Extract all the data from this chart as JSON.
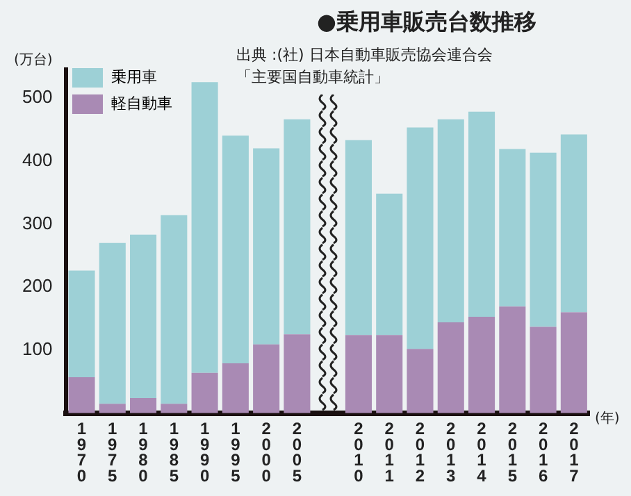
{
  "chart_data": {
    "type": "bar",
    "title": "●乗用車販売台数推移",
    "annotations": [
      "出典 :(社) 日本自動車販売協会連合会",
      "「主要国自動車統計」"
    ],
    "ylabel": "(万台)",
    "xlabel": "(年)",
    "categories": [
      "1970",
      "1975",
      "1980",
      "1985",
      "1990",
      "1995",
      "2000",
      "2005",
      null,
      "2010",
      "2011",
      "2012",
      "2013",
      "2014",
      "2015",
      "2016",
      "2017"
    ],
    "stacked": true,
    "series": [
      {
        "name": "軽自動車",
        "color": "#a98ab4",
        "values": [
          57,
          15,
          24,
          15,
          64,
          79,
          109,
          125,
          null,
          124,
          124,
          102,
          144,
          153,
          169,
          137,
          160
        ]
      },
      {
        "name": "乗用車",
        "color": "#9dd0d6",
        "values": [
          169,
          255,
          259,
          299,
          461,
          361,
          311,
          341,
          null,
          309,
          224,
          351,
          322,
          325,
          250,
          276,
          282
        ]
      }
    ],
    "ylim": [
      0,
      545
    ],
    "yticks": [
      100,
      200,
      300,
      400,
      500
    ],
    "grid": false,
    "legend": "top left"
  }
}
